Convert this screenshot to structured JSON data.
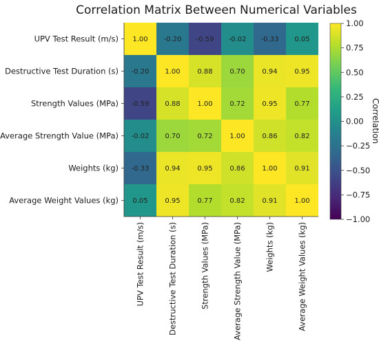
{
  "chart_data": {
    "type": "heatmap",
    "title": "Correlation Matrix Between Numerical Variables",
    "variables": [
      "UPV Test Result (m/s)",
      "Destructive Test Duration (s)",
      "Strength Values (MPa)",
      "Average Strength Value (MPa)",
      "Weights (kg)",
      "Average Weight Values (kg)"
    ],
    "values": [
      [
        1.0,
        -0.2,
        -0.59,
        -0.02,
        -0.33,
        0.05
      ],
      [
        -0.2,
        1.0,
        0.88,
        0.7,
        0.94,
        0.95
      ],
      [
        -0.59,
        0.88,
        1.0,
        0.72,
        0.95,
        0.77
      ],
      [
        -0.02,
        0.7,
        0.72,
        1.0,
        0.86,
        0.82
      ],
      [
        -0.33,
        0.94,
        0.95,
        0.86,
        1.0,
        0.91
      ],
      [
        0.05,
        0.95,
        0.77,
        0.82,
        0.91,
        1.0
      ]
    ],
    "colorbar": {
      "label": "Correlation",
      "range": [
        -1.0,
        1.0
      ],
      "ticks": [
        "1.00",
        "0.75",
        "0.50",
        "0.25",
        "0.00",
        "−0.25",
        "−0.50",
        "−0.75",
        "−1.00"
      ],
      "colormap": "viridis",
      "colors": [
        "#440154",
        "#482878",
        "#3e4a89",
        "#31688e",
        "#26828e",
        "#1f9e89",
        "#35b779",
        "#6ece58",
        "#b5de2b",
        "#fde725"
      ]
    }
  }
}
